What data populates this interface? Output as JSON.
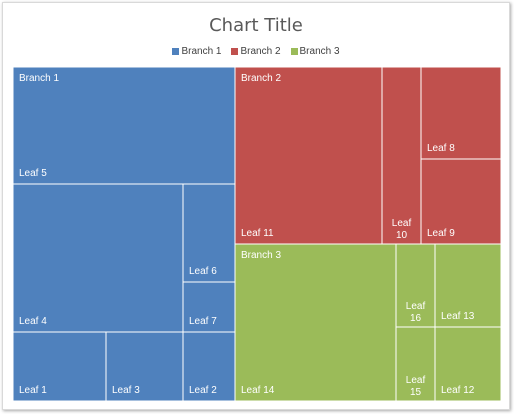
{
  "chart_data": {
    "type": "treemap",
    "title": "Chart Title",
    "legend_position": "top",
    "colors": {
      "Branch 1": "#4f81bd",
      "Branch 2": "#c0504d",
      "Branch 3": "#9bbb59"
    },
    "branches": [
      {
        "name": "Branch 1",
        "leaves": [
          {
            "name": "Leaf 5",
            "value": 30
          },
          {
            "name": "Leaf 4",
            "value": 20
          },
          {
            "name": "Leaf 1",
            "value": 5
          },
          {
            "name": "Leaf 3",
            "value": 5
          },
          {
            "name": "Leaf 6",
            "value": 4
          },
          {
            "name": "Leaf 7",
            "value": 2.3
          },
          {
            "name": "Leaf 2",
            "value": 3
          }
        ]
      },
      {
        "name": "Branch 2",
        "leaves": [
          {
            "name": "Leaf 11",
            "value": 23
          },
          {
            "name": "Leaf 10",
            "value": 6
          },
          {
            "name": "Leaf 8",
            "value": 5.5
          },
          {
            "name": "Leaf 9",
            "value": 5
          }
        ]
      },
      {
        "name": "Branch 3",
        "leaves": [
          {
            "name": "Leaf 14",
            "value": 25
          },
          {
            "name": "Leaf 16",
            "value": 3.1
          },
          {
            "name": "Leaf 15",
            "value": 2.7
          },
          {
            "name": "Leaf 13",
            "value": 3.2
          },
          {
            "name": "Leaf 12",
            "value": 3.2
          }
        ]
      }
    ]
  }
}
